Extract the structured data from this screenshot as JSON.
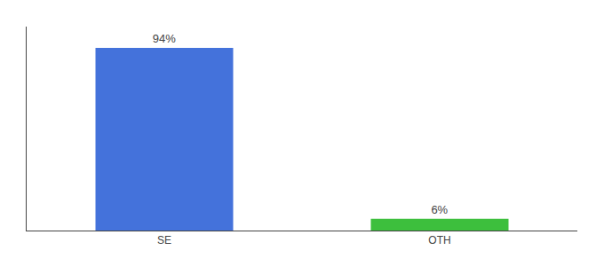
{
  "chart_data": {
    "type": "bar",
    "categories": [
      "SE",
      "OTH"
    ],
    "values": [
      94,
      6
    ],
    "value_labels": [
      "94%",
      "6%"
    ],
    "colors": [
      "#4472db",
      "#3dbf3d"
    ],
    "ylim": [
      0,
      105
    ],
    "grid": false,
    "data_labels": true,
    "tick_labels": "x"
  }
}
